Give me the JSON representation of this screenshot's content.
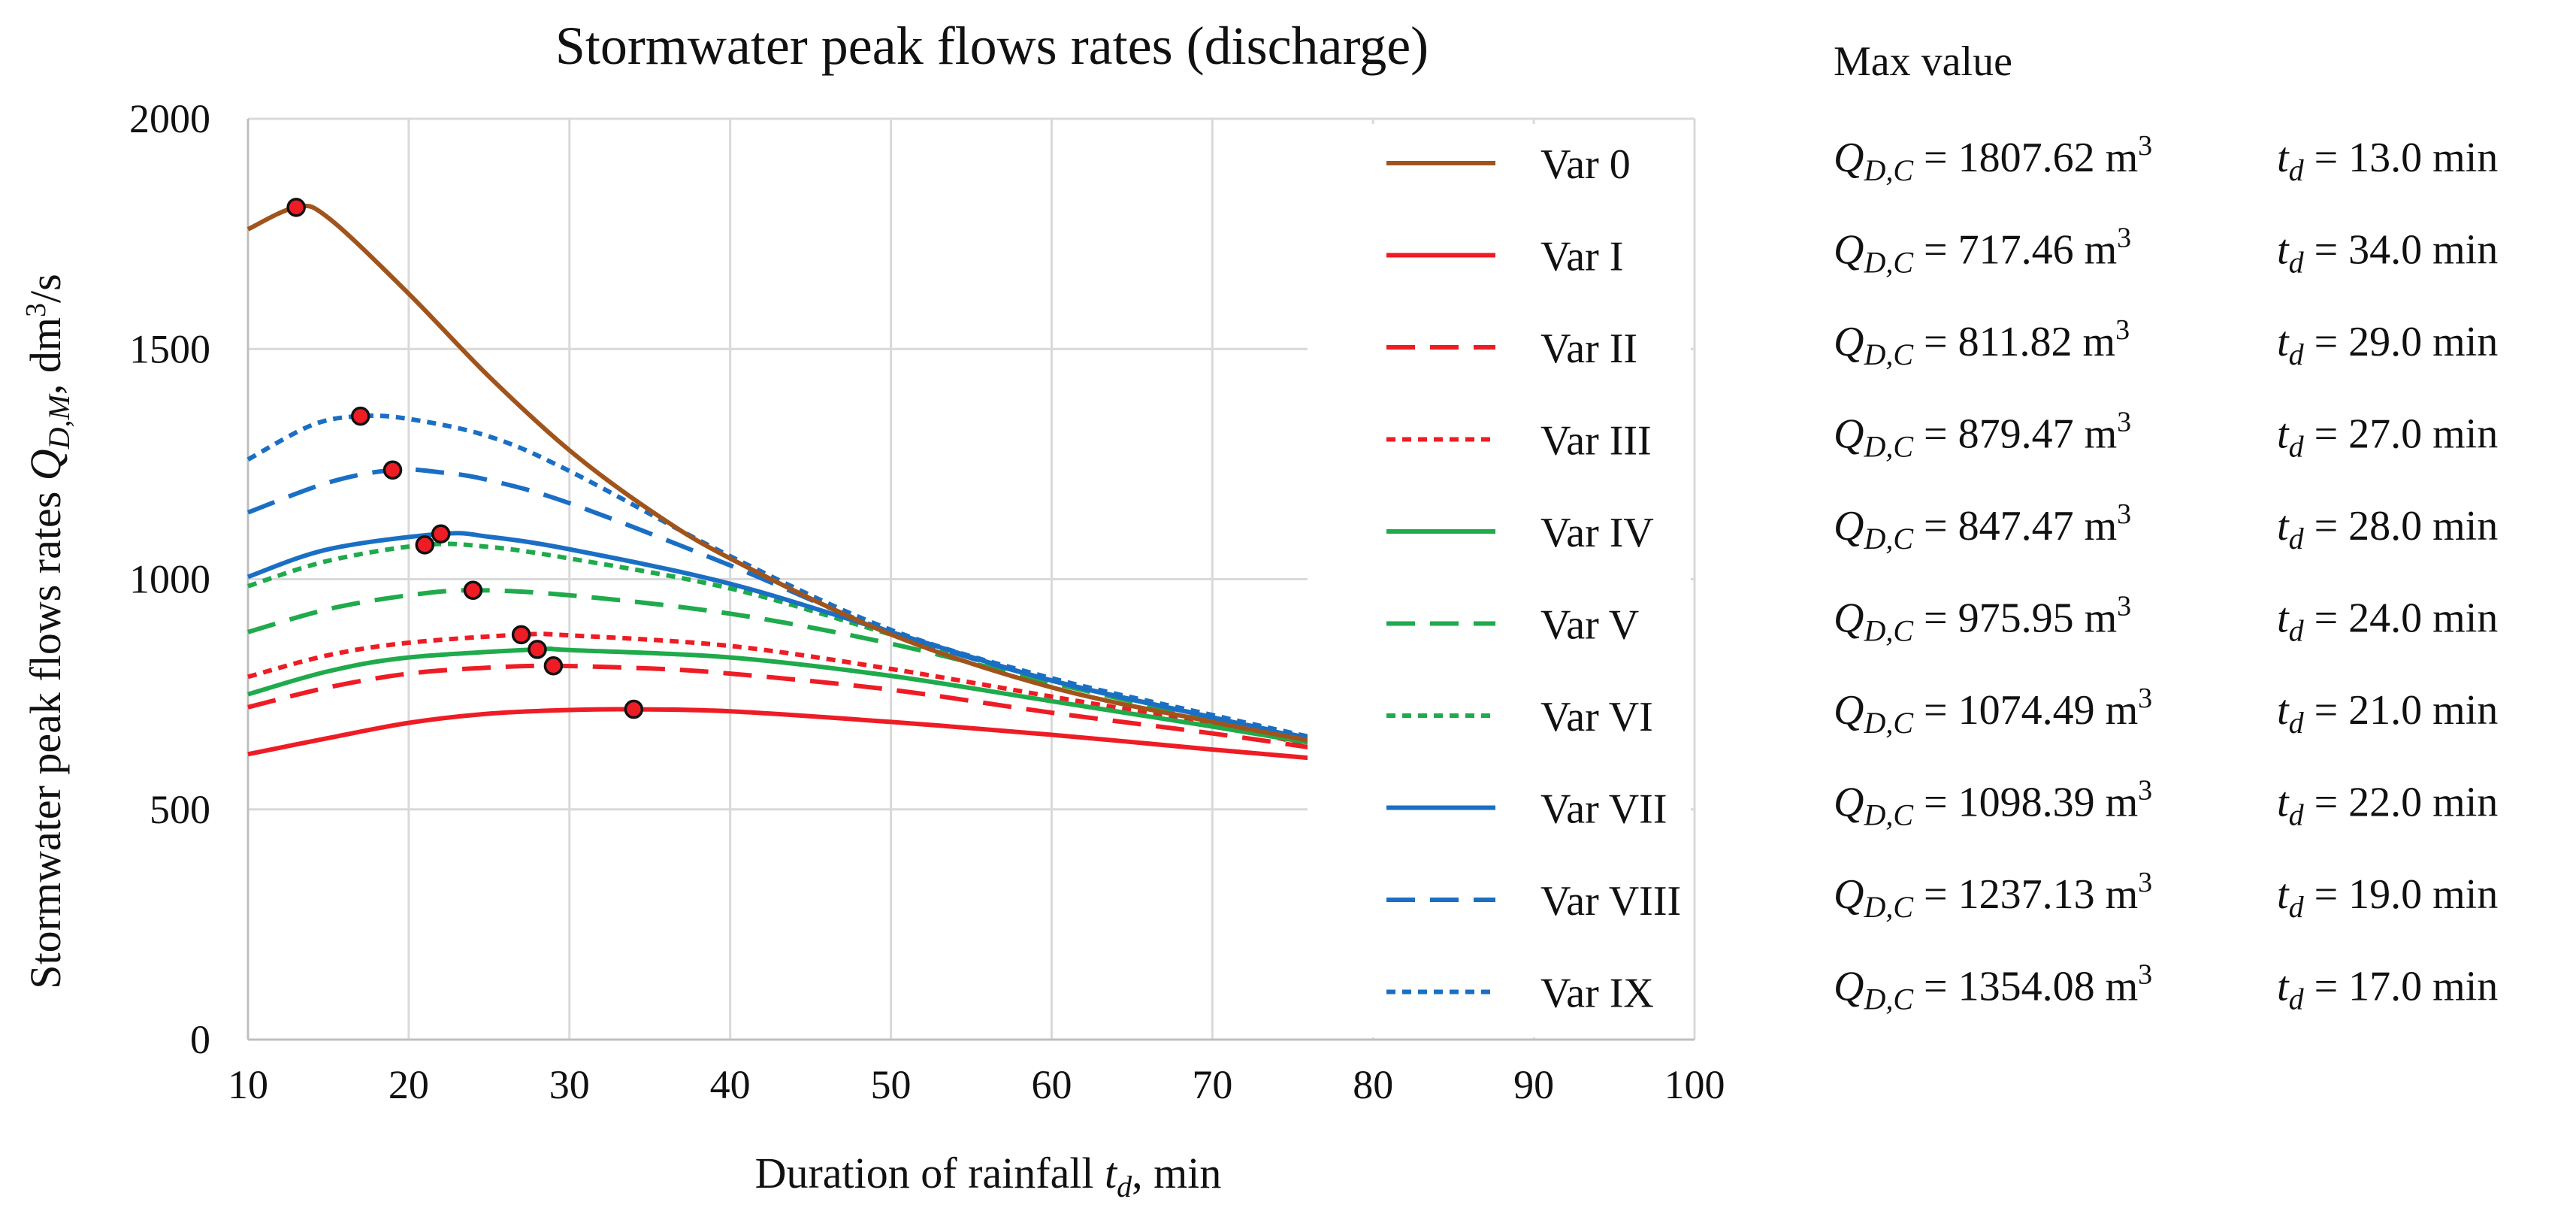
{
  "chart_data": {
    "type": "line",
    "title": "Stormwater peak flows rates (discharge)",
    "xlabel": "Duration of rainfall t_d, min",
    "xlabel_parts": [
      "Duration of rainfall ",
      "t",
      "d",
      ", min"
    ],
    "ylabel": "Stormwater peak flows rates Q_D,M, dm³/s",
    "ylabel_parts": [
      "Stormwater peak flows rates ",
      "Q",
      "D,M",
      ", dm",
      "3",
      "/s"
    ],
    "xlim": [
      10,
      100
    ],
    "ylim": [
      0,
      2000
    ],
    "x_ticks": [
      "10",
      "20",
      "30",
      "40",
      "50",
      "60",
      "70",
      "80",
      "90",
      "100"
    ],
    "y_ticks": [
      "0",
      "500",
      "1000",
      "1500",
      "2000"
    ],
    "grid": true,
    "legend_position": "right",
    "colors": {
      "brown": "#A0541C",
      "red": "#EE1C24",
      "green": "#1FAA4B",
      "blue": "#1A6FC4"
    },
    "series": [
      {
        "name": "Var 0",
        "color": "#A0541C",
        "dash": "solid",
        "peak": [
          13,
          1807.62
        ],
        "points": [
          [
            10,
            1760
          ],
          [
            13,
            1807.62
          ],
          [
            15,
            1785
          ],
          [
            20,
            1620
          ],
          [
            25,
            1440
          ],
          [
            30,
            1280
          ],
          [
            35,
            1150
          ],
          [
            40,
            1045
          ],
          [
            50,
            880
          ],
          [
            60,
            765
          ],
          [
            70,
            690
          ],
          [
            76,
            650
          ]
        ]
      },
      {
        "name": "Var I",
        "color": "#EE1C24",
        "dash": "solid",
        "peak": [
          34,
          717.46
        ],
        "points": [
          [
            10,
            620
          ],
          [
            15,
            655
          ],
          [
            20,
            688
          ],
          [
            25,
            708
          ],
          [
            30,
            716
          ],
          [
            34,
            717.46
          ],
          [
            40,
            713
          ],
          [
            50,
            690
          ],
          [
            60,
            662
          ],
          [
            70,
            630
          ],
          [
            76,
            612
          ]
        ]
      },
      {
        "name": "Var II",
        "color": "#EE1C24",
        "dash": "dash",
        "peak": [
          29,
          811.82
        ],
        "points": [
          [
            10,
            722
          ],
          [
            15,
            765
          ],
          [
            20,
            795
          ],
          [
            25,
            808
          ],
          [
            29,
            811.82
          ],
          [
            35,
            806
          ],
          [
            40,
            795
          ],
          [
            50,
            760
          ],
          [
            60,
            710
          ],
          [
            70,
            665
          ],
          [
            76,
            635
          ]
        ]
      },
      {
        "name": "Var III",
        "color": "#EE1C24",
        "dash": "dot",
        "peak": [
          27,
          879.47
        ],
        "points": [
          [
            10,
            788
          ],
          [
            15,
            835
          ],
          [
            20,
            862
          ],
          [
            27,
            879.47
          ],
          [
            30,
            878
          ],
          [
            40,
            855
          ],
          [
            50,
            805
          ],
          [
            60,
            745
          ],
          [
            70,
            685
          ],
          [
            76,
            640
          ]
        ]
      },
      {
        "name": "Var IV",
        "color": "#1FAA4B",
        "dash": "solid",
        "peak": [
          28,
          847.47
        ],
        "points": [
          [
            10,
            750
          ],
          [
            15,
            800
          ],
          [
            20,
            830
          ],
          [
            28,
            847.47
          ],
          [
            30,
            846
          ],
          [
            40,
            830
          ],
          [
            50,
            790
          ],
          [
            60,
            735
          ],
          [
            70,
            680
          ],
          [
            76,
            645
          ]
        ]
      },
      {
        "name": "Var V",
        "color": "#1FAA4B",
        "dash": "dash",
        "peak": [
          24,
          975.95
        ],
        "points": [
          [
            10,
            885
          ],
          [
            15,
            935
          ],
          [
            20,
            965
          ],
          [
            24,
            975.95
          ],
          [
            30,
            965
          ],
          [
            40,
            925
          ],
          [
            50,
            860
          ],
          [
            60,
            775
          ],
          [
            70,
            695
          ],
          [
            76,
            648
          ]
        ]
      },
      {
        "name": "Var VI",
        "color": "#1FAA4B",
        "dash": "dot",
        "peak": [
          21,
          1074.49
        ],
        "points": [
          [
            10,
            985
          ],
          [
            15,
            1040
          ],
          [
            21,
            1074.49
          ],
          [
            25,
            1070
          ],
          [
            30,
            1045
          ],
          [
            40,
            980
          ],
          [
            50,
            880
          ],
          [
            60,
            780
          ],
          [
            70,
            700
          ],
          [
            76,
            650
          ]
        ]
      },
      {
        "name": "Var VII",
        "color": "#1A6FC4",
        "dash": "solid",
        "peak": [
          22,
          1098.39
        ],
        "points": [
          [
            10,
            1005
          ],
          [
            15,
            1065
          ],
          [
            22,
            1098.39
          ],
          [
            25,
            1092
          ],
          [
            30,
            1065
          ],
          [
            40,
            990
          ],
          [
            50,
            885
          ],
          [
            60,
            780
          ],
          [
            70,
            700
          ],
          [
            76,
            652
          ]
        ]
      },
      {
        "name": "Var VIII",
        "color": "#1A6FC4",
        "dash": "dash",
        "peak": [
          19,
          1237.13
        ],
        "points": [
          [
            10,
            1145
          ],
          [
            15,
            1210
          ],
          [
            19,
            1237.13
          ],
          [
            22,
            1232
          ],
          [
            25,
            1215
          ],
          [
            30,
            1165
          ],
          [
            40,
            1030
          ],
          [
            50,
            885
          ],
          [
            60,
            780
          ],
          [
            70,
            700
          ],
          [
            76,
            655
          ]
        ]
      },
      {
        "name": "Var IX",
        "color": "#1A6FC4",
        "dash": "dot",
        "peak": [
          17,
          1354.08
        ],
        "points": [
          [
            10,
            1260
          ],
          [
            14,
            1335
          ],
          [
            17,
            1354.08
          ],
          [
            20,
            1348
          ],
          [
            25,
            1310
          ],
          [
            30,
            1235
          ],
          [
            40,
            1050
          ],
          [
            50,
            890
          ],
          [
            60,
            785
          ],
          [
            70,
            705
          ],
          [
            76,
            658
          ]
        ]
      }
    ],
    "max_value": {
      "header": "Max value",
      "q_symbol": "Q",
      "q_sub": "D,C",
      "t_symbol": "t",
      "t_sub": "d",
      "rows": [
        {
          "q": " = 1807.62 m",
          "q_sup": "3",
          "t": " = 13.0 min"
        },
        {
          "q": " = 717.46 m",
          "q_sup": "3",
          "t": " = 34.0 min"
        },
        {
          "q": " = 811.82 m",
          "q_sup": "3",
          "t": " = 29.0 min"
        },
        {
          "q": " = 879.47 m",
          "q_sup": "3",
          "t": " = 27.0 min"
        },
        {
          "q": " = 847.47 m",
          "q_sup": "3",
          "t": " = 28.0 min"
        },
        {
          "q": " = 975.95 m",
          "q_sup": "3",
          "t": " = 24.0 min"
        },
        {
          "q": " = 1074.49 m",
          "q_sup": "3",
          "t": " = 21.0 min"
        },
        {
          "q": " = 1098.39 m",
          "q_sup": "3",
          "t": " = 22.0 min"
        },
        {
          "q": " = 1237.13 m",
          "q_sup": "3",
          "t": " = 19.0 min"
        },
        {
          "q": " = 1354.08 m",
          "q_sup": "3",
          "t": " = 17.0 min"
        }
      ]
    }
  }
}
